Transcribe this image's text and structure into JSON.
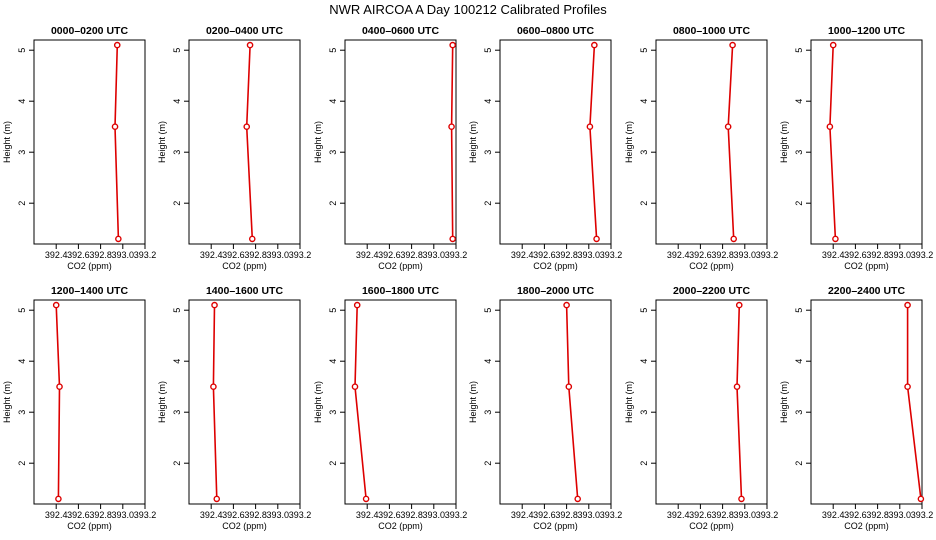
{
  "figure": {
    "title": "NWR AIRCOA A  Day 100212  Calibrated Profiles",
    "colors": {
      "line": "#dd0000",
      "marker": "#dd0000"
    }
  },
  "chart_data": [
    {
      "type": "line",
      "title": "0000–0200 UTC",
      "xlabel": "CO2 (ppm)",
      "ylabel": "Height (m)",
      "xlim": [
        392.2,
        393.2
      ],
      "ylim": [
        1.2,
        5.2
      ],
      "xticks": [
        "392.4",
        "392.6",
        "392.8",
        "393.0",
        "393.2"
      ],
      "yticks": [
        "2",
        "3",
        "4",
        "5"
      ],
      "series": [
        {
          "x": [
            392.95,
            392.93,
            392.96
          ],
          "y": [
            5.1,
            3.5,
            1.3
          ]
        }
      ]
    },
    {
      "type": "line",
      "title": "0200–0400 UTC",
      "xlabel": "CO2 (ppm)",
      "ylabel": "Height (m)",
      "xlim": [
        392.2,
        393.2
      ],
      "ylim": [
        1.2,
        5.2
      ],
      "xticks": [
        "392.4",
        "392.6",
        "392.8",
        "393.0",
        "393.2"
      ],
      "yticks": [
        "2",
        "3",
        "4",
        "5"
      ],
      "series": [
        {
          "x": [
            392.75,
            392.72,
            392.77
          ],
          "y": [
            5.1,
            3.5,
            1.3
          ]
        }
      ]
    },
    {
      "type": "line",
      "title": "0400–0600 UTC",
      "xlabel": "CO2 (ppm)",
      "ylabel": "Height (m)",
      "xlim": [
        392.2,
        393.2
      ],
      "ylim": [
        1.2,
        5.2
      ],
      "xticks": [
        "392.4",
        "392.6",
        "392.8",
        "393.0",
        "393.2"
      ],
      "yticks": [
        "2",
        "3",
        "4",
        "5"
      ],
      "series": [
        {
          "x": [
            393.17,
            393.16,
            393.17
          ],
          "y": [
            5.1,
            3.5,
            1.3
          ]
        }
      ]
    },
    {
      "type": "line",
      "title": "0600–0800 UTC",
      "xlabel": "CO2 (ppm)",
      "ylabel": "Height (m)",
      "xlim": [
        392.2,
        393.2
      ],
      "ylim": [
        1.2,
        5.2
      ],
      "xticks": [
        "392.4",
        "392.6",
        "392.8",
        "393.0",
        "393.2"
      ],
      "yticks": [
        "2",
        "3",
        "4",
        "5"
      ],
      "series": [
        {
          "x": [
            393.05,
            393.01,
            393.07
          ],
          "y": [
            5.1,
            3.5,
            1.3
          ]
        }
      ]
    },
    {
      "type": "line",
      "title": "0800–1000 UTC",
      "xlabel": "CO2 (ppm)",
      "ylabel": "Height (m)",
      "xlim": [
        392.2,
        393.2
      ],
      "ylim": [
        1.2,
        5.2
      ],
      "xticks": [
        "392.4",
        "392.6",
        "392.8",
        "393.0",
        "393.2"
      ],
      "yticks": [
        "2",
        "3",
        "4",
        "5"
      ],
      "series": [
        {
          "x": [
            392.89,
            392.85,
            392.9
          ],
          "y": [
            5.1,
            3.5,
            1.3
          ]
        }
      ]
    },
    {
      "type": "line",
      "title": "1000–1200 UTC",
      "xlabel": "CO2 (ppm)",
      "ylabel": "Height (m)",
      "xlim": [
        392.2,
        393.2
      ],
      "ylim": [
        1.2,
        5.2
      ],
      "xticks": [
        "392.4",
        "392.6",
        "392.8",
        "393.0",
        "393.2"
      ],
      "yticks": [
        "2",
        "3",
        "4",
        "5"
      ],
      "series": [
        {
          "x": [
            392.4,
            392.37,
            392.42
          ],
          "y": [
            5.1,
            3.5,
            1.3
          ]
        }
      ]
    },
    {
      "type": "line",
      "title": "1200–1400 UTC",
      "xlabel": "CO2 (ppm)",
      "ylabel": "Height (m)",
      "xlim": [
        392.2,
        393.2
      ],
      "ylim": [
        1.2,
        5.2
      ],
      "xticks": [
        "392.4",
        "392.6",
        "392.8",
        "393.0",
        "393.2"
      ],
      "yticks": [
        "2",
        "3",
        "4",
        "5"
      ],
      "series": [
        {
          "x": [
            392.4,
            392.43,
            392.42
          ],
          "y": [
            5.1,
            3.5,
            1.3
          ]
        }
      ]
    },
    {
      "type": "line",
      "title": "1400–1600 UTC",
      "xlabel": "CO2 (ppm)",
      "ylabel": "Height (m)",
      "xlim": [
        392.2,
        393.2
      ],
      "ylim": [
        1.2,
        5.2
      ],
      "xticks": [
        "392.4",
        "392.6",
        "392.8",
        "393.0",
        "393.2"
      ],
      "yticks": [
        "2",
        "3",
        "4",
        "5"
      ],
      "series": [
        {
          "x": [
            392.43,
            392.42,
            392.45
          ],
          "y": [
            5.1,
            3.5,
            1.3
          ]
        }
      ]
    },
    {
      "type": "line",
      "title": "1600–1800 UTC",
      "xlabel": "CO2 (ppm)",
      "ylabel": "Height (m)",
      "xlim": [
        392.2,
        393.2
      ],
      "ylim": [
        1.2,
        5.2
      ],
      "xticks": [
        "392.4",
        "392.6",
        "392.8",
        "393.0",
        "393.2"
      ],
      "yticks": [
        "2",
        "3",
        "4",
        "5"
      ],
      "series": [
        {
          "x": [
            392.31,
            392.29,
            392.39
          ],
          "y": [
            5.1,
            3.5,
            1.3
          ]
        }
      ]
    },
    {
      "type": "line",
      "title": "1800–2000 UTC",
      "xlabel": "CO2 (ppm)",
      "ylabel": "Height (m)",
      "xlim": [
        392.2,
        393.2
      ],
      "ylim": [
        1.2,
        5.2
      ],
      "xticks": [
        "392.4",
        "392.6",
        "392.8",
        "393.0",
        "393.2"
      ],
      "yticks": [
        "2",
        "3",
        "4",
        "5"
      ],
      "series": [
        {
          "x": [
            392.8,
            392.82,
            392.9
          ],
          "y": [
            5.1,
            3.5,
            1.3
          ]
        }
      ]
    },
    {
      "type": "line",
      "title": "2000–2200 UTC",
      "xlabel": "CO2 (ppm)",
      "ylabel": "Height (m)",
      "xlim": [
        392.2,
        393.2
      ],
      "ylim": [
        1.2,
        5.2
      ],
      "xticks": [
        "392.4",
        "392.6",
        "392.8",
        "393.0",
        "393.2"
      ],
      "yticks": [
        "2",
        "3",
        "4",
        "5"
      ],
      "series": [
        {
          "x": [
            392.95,
            392.93,
            392.97
          ],
          "y": [
            5.1,
            3.5,
            1.3
          ]
        }
      ]
    },
    {
      "type": "line",
      "title": "2200–2400 UTC",
      "xlabel": "CO2 (ppm)",
      "ylabel": "Height (m)",
      "xlim": [
        392.2,
        393.2
      ],
      "ylim": [
        1.2,
        5.2
      ],
      "xticks": [
        "392.4",
        "392.6",
        "392.8",
        "393.0",
        "393.2"
      ],
      "yticks": [
        "2",
        "3",
        "4",
        "5"
      ],
      "series": [
        {
          "x": [
            393.07,
            393.07,
            393.19
          ],
          "y": [
            5.1,
            3.5,
            1.3
          ]
        }
      ]
    }
  ]
}
